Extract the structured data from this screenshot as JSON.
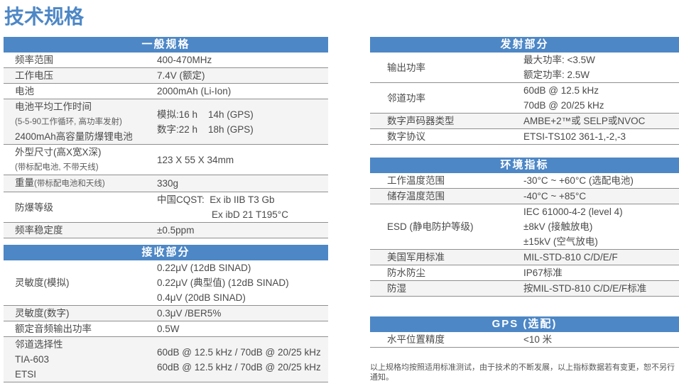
{
  "title": "技术规格",
  "footer_note": "以上规格均按照适用标准测试，由于技术的不断发展，以上指标数据若有变更，恕不另行通知。",
  "colors": {
    "accent_blue": "#4d87c6",
    "row_shade": "#f4f4f4",
    "divider_line": "#8f8f8f",
    "body_text": "#4a4a4a",
    "header_text": "#ffffff"
  },
  "tables": [
    {
      "id": "general",
      "column": "left",
      "title": "一般规格",
      "rows": [
        {
          "shaded": false,
          "label": [
            [
              {
                "t": "频率范围"
              }
            ]
          ],
          "value": [
            [
              {
                "t": "400-470MHz"
              }
            ]
          ]
        },
        {
          "shaded": true,
          "label": [
            [
              {
                "t": "工作电压"
              }
            ]
          ],
          "value": [
            [
              {
                "t": "7.4V (额定)"
              }
            ]
          ]
        },
        {
          "shaded": false,
          "label": [
            [
              {
                "t": "电池"
              }
            ]
          ],
          "value": [
            [
              {
                "t": "2000mAh (Li-Ion)"
              }
            ]
          ]
        },
        {
          "shaded": true,
          "label": [
            [
              {
                "t": "电池平均工作时间"
              }
            ],
            [
              {
                "t": "(5-5-90工作循环, 高功率发射)",
                "small": true
              }
            ],
            [
              {
                "t": "2400mAh高容量防爆锂电池"
              }
            ]
          ],
          "value": [
            [
              {
                "t": "模拟:16 h    14h (GPS)"
              }
            ],
            [
              {
                "t": "数字:22 h    18h (GPS)"
              }
            ]
          ]
        },
        {
          "shaded": false,
          "label": [
            [
              {
                "t": "外型尺寸(高X宽X深)"
              }
            ],
            [
              {
                "t": "(带标配电池, 不带天线)",
                "small": true
              }
            ]
          ],
          "value": [
            [
              {
                "t": "123 X 55 X 34mm"
              }
            ]
          ]
        },
        {
          "shaded": true,
          "label": [
            [
              {
                "t": "重量"
              },
              {
                "t": "(带标配电池和天线)",
                "small": true
              }
            ]
          ],
          "value": [
            [
              {
                "t": "330g"
              }
            ]
          ]
        },
        {
          "shaded": false,
          "label": [
            [
              {
                "t": "防爆等级"
              }
            ]
          ],
          "value": [
            [
              {
                "t": "中国CQST:  Ex ib IIB T3 Gb"
              }
            ],
            [
              {
                "t": "Ex ibD 21 T195°C",
                "indent": true
              }
            ]
          ]
        },
        {
          "shaded": true,
          "label": [
            [
              {
                "t": "频率稳定度"
              }
            ]
          ],
          "value": [
            [
              {
                "t": "±0.5ppm"
              }
            ]
          ]
        }
      ]
    },
    {
      "id": "receiver",
      "column": "left",
      "title": "接收部分",
      "rows": [
        {
          "shaded": false,
          "label": [
            [
              {
                "t": "灵敏度(模拟)"
              }
            ]
          ],
          "value": [
            [
              {
                "t": "0.22μV (12dB SINAD)"
              }
            ],
            [
              {
                "t": "0.22μV (典型值) (12dB SINAD)"
              }
            ],
            [
              {
                "t": "0.4μV (20dB SINAD)"
              }
            ]
          ]
        },
        {
          "shaded": true,
          "label": [
            [
              {
                "t": "灵敏度(数字)"
              }
            ]
          ],
          "value": [
            [
              {
                "t": "0.3μV /BER5%"
              }
            ]
          ]
        },
        {
          "shaded": false,
          "label": [
            [
              {
                "t": "额定音频输出功率"
              }
            ]
          ],
          "value": [
            [
              {
                "t": "0.5W"
              }
            ]
          ]
        },
        {
          "shaded": true,
          "label": [
            [
              {
                "t": "邻道选择性"
              }
            ],
            [
              {
                "t": "TIA-603"
              }
            ],
            [
              {
                "t": "ETSI"
              }
            ]
          ],
          "value": [
            [
              {
                "t": "60dB @ 12.5 kHz / 70dB @ 20/25 kHz"
              }
            ],
            [
              {
                "t": "60dB @ 12.5 kHz / 70dB @ 20/25 kHz"
              }
            ]
          ]
        }
      ]
    },
    {
      "id": "transmitter",
      "column": "right",
      "title": "发射部分",
      "rows": [
        {
          "shaded": false,
          "label": [
            [
              {
                "t": "输出功率"
              }
            ]
          ],
          "value": [
            [
              {
                "t": "最大功率: <3.5W"
              }
            ],
            [
              {
                "t": "额定功率: 2.5W"
              }
            ]
          ]
        },
        {
          "shaded": false,
          "label": [
            [
              {
                "t": "邻道功率"
              }
            ]
          ],
          "value": [
            [
              {
                "t": "60dB @ 12.5 kHz"
              }
            ],
            [
              {
                "t": "70dB @ 20/25 kHz"
              }
            ]
          ]
        },
        {
          "shaded": true,
          "label": [
            [
              {
                "t": "数字声码器类型"
              }
            ]
          ],
          "value": [
            [
              {
                "t": "AMBE+2™或 SELP或NVOC"
              }
            ]
          ]
        },
        {
          "shaded": false,
          "label": [
            [
              {
                "t": "数字协议"
              }
            ]
          ],
          "value": [
            [
              {
                "t": "ETSI-TS102 361-1,-2,-3"
              }
            ]
          ]
        }
      ]
    },
    {
      "id": "environment",
      "column": "right",
      "title": "环境指标",
      "rows": [
        {
          "shaded": false,
          "label": [
            [
              {
                "t": "工作温度范围"
              }
            ]
          ],
          "value": [
            [
              {
                "t": "-30°C ~ +60°C (选配电池)"
              }
            ]
          ]
        },
        {
          "shaded": true,
          "label": [
            [
              {
                "t": "储存温度范围"
              }
            ]
          ],
          "value": [
            [
              {
                "t": "-40°C ~ +85°C"
              }
            ]
          ]
        },
        {
          "shaded": false,
          "label": [
            [
              {
                "t": "ESD (静电防护等级)"
              }
            ]
          ],
          "value": [
            [
              {
                "t": "IEC 61000-4-2 (level 4)"
              }
            ],
            [
              {
                "t": "±8kV (接触放电)"
              }
            ],
            [
              {
                "t": "±15kV (空气放电)"
              }
            ]
          ]
        },
        {
          "shaded": true,
          "label": [
            [
              {
                "t": "美国军用标准"
              }
            ]
          ],
          "value": [
            [
              {
                "t": "MIL-STD-810 C/D/E/F"
              }
            ]
          ]
        },
        {
          "shaded": false,
          "label": [
            [
              {
                "t": "防水防尘"
              }
            ]
          ],
          "value": [
            [
              {
                "t": "IP67标准"
              }
            ]
          ]
        },
        {
          "shaded": true,
          "label": [
            [
              {
                "t": "防湿"
              }
            ]
          ],
          "value": [
            [
              {
                "t": "按MIL-STD-810 C/D/E/F标准"
              }
            ]
          ]
        }
      ]
    },
    {
      "id": "gps",
      "column": "right",
      "title": "GPS (选配)",
      "rows": [
        {
          "shaded": false,
          "label": [
            [
              {
                "t": "水平位置精度"
              }
            ]
          ],
          "value": [
            [
              {
                "t": "<10 米"
              }
            ]
          ]
        }
      ]
    }
  ]
}
